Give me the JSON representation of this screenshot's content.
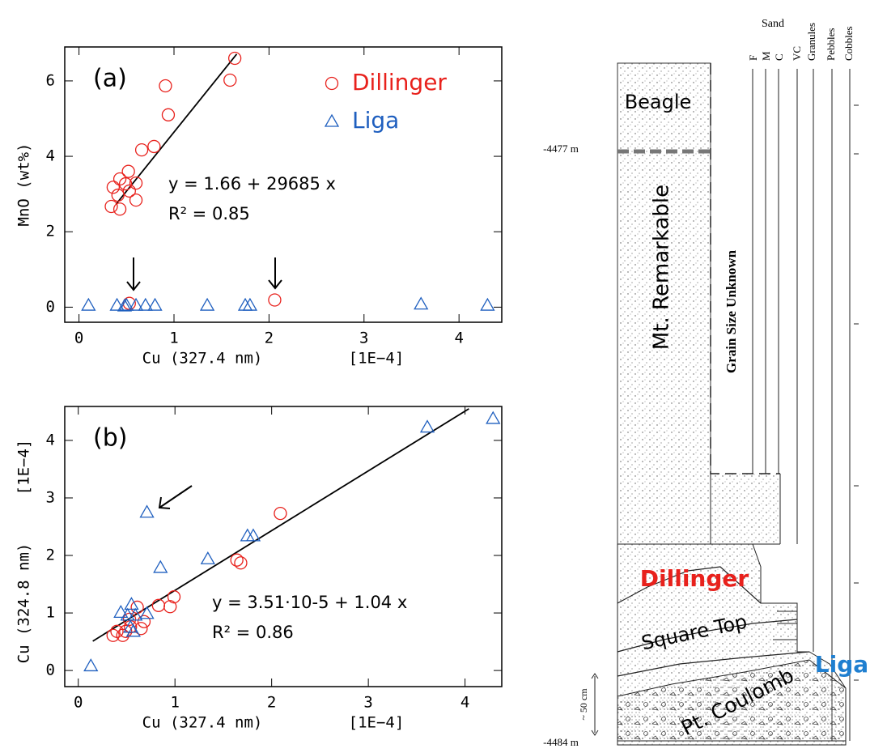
{
  "chart_data": [
    {
      "type": "scatter",
      "panel_label": "(a)",
      "xlabel": "Cu (327.4 nm)",
      "xunit": "[1E−4]",
      "ylabel": "MnO (wt%)",
      "xlim": [
        -0.15,
        4.45
      ],
      "ylim": [
        -0.4,
        6.9
      ],
      "xticks": [
        0,
        1,
        2,
        3,
        4
      ],
      "yticks": [
        0,
        2,
        4,
        6
      ],
      "legend": "upper right",
      "annotations": [
        "y = 1.66 + 29685 x",
        "R² = 0.85"
      ],
      "fit": {
        "x": [
          0.39,
          1.66
        ],
        "y": [
          2.73,
          6.71
        ]
      },
      "series": [
        {
          "name": "Dillinger",
          "color": "#e8211c",
          "marker": "circle",
          "x": [
            1.64,
            1.59,
            0.91,
            0.94,
            0.79,
            0.66,
            0.52,
            0.49,
            0.6,
            0.43,
            0.36,
            0.41,
            0.53,
            0.6,
            0.34,
            0.43,
            0.53,
            2.06
          ],
          "values": [
            6.6,
            6.02,
            5.87,
            5.1,
            4.26,
            4.17,
            3.6,
            3.27,
            3.29,
            3.4,
            3.18,
            2.97,
            3.08,
            2.84,
            2.67,
            2.6,
            0.1,
            0.19
          ]
        },
        {
          "name": "Liga",
          "color": "#1f5fbf",
          "marker": "triangle",
          "x": [
            0.1,
            0.4,
            0.5,
            0.48,
            0.6,
            0.7,
            0.8,
            1.35,
            1.75,
            1.8,
            3.6,
            4.3
          ],
          "values": [
            0.05,
            0.05,
            0.05,
            0.03,
            0.05,
            0.05,
            0.05,
            0.05,
            0.05,
            0.05,
            0.08,
            0.05
          ]
        }
      ]
    },
    {
      "type": "scatter",
      "panel_label": "(b)",
      "xlabel": "Cu (327.4 nm)",
      "xunit": "[1E−4]",
      "ylabel": "Cu (324.8 nm)",
      "yunit": "[1E−4]",
      "xlim": [
        -0.14,
        4.38
      ],
      "ylim": [
        -0.28,
        4.59
      ],
      "xticks": [
        0,
        1,
        2,
        3,
        4
      ],
      "yticks": [
        0,
        1,
        2,
        3,
        4
      ],
      "annotations": [
        "y = 3.51·10-5 + 1.04 x",
        "R² = 0.86"
      ],
      "fit": {
        "x": [
          0.15,
          4.04
        ],
        "y": [
          0.51,
          4.55
        ]
      },
      "series": [
        {
          "name": "Dillinger",
          "color": "#e8211c",
          "marker": "circle",
          "x": [
            2.09,
            1.64,
            1.68,
            0.99,
            0.95,
            0.83,
            0.61,
            0.4,
            0.36,
            0.46,
            0.49,
            0.54,
            0.65,
            0.68,
            0.53
          ],
          "values": [
            2.73,
            1.92,
            1.87,
            1.28,
            1.11,
            1.13,
            1.1,
            0.68,
            0.61,
            0.61,
            0.68,
            0.76,
            0.73,
            0.85,
            0.89
          ]
        },
        {
          "name": "Liga",
          "color": "#1f5fbf",
          "marker": "triangle",
          "x": [
            0.13,
            3.61,
            4.29,
            0.71,
            0.85,
            1.34,
            1.75,
            1.81,
            0.55,
            0.44,
            0.59,
            0.71,
            0.54,
            0.57,
            0.51
          ],
          "values": [
            0.08,
            4.23,
            4.38,
            2.75,
            1.79,
            1.94,
            2.34,
            2.34,
            1.15,
            1.01,
            0.96,
            0.99,
            0.75,
            0.68,
            0.96
          ]
        }
      ]
    }
  ],
  "diagram": {
    "grain_header": "Sand",
    "grain_sizes": [
      "F",
      "M",
      "C",
      "VC",
      "Granules",
      "Pebbles",
      "Cobbles"
    ],
    "depths": [
      "-4477 m",
      "-4484 m"
    ],
    "scale": "~ 50 cm",
    "note": "Grain Size Unknown",
    "units": [
      "Beagle",
      "Mt. Remarkable",
      "Dillinger",
      "Square Top",
      "Liga",
      "Pt. Coulomb"
    ]
  }
}
